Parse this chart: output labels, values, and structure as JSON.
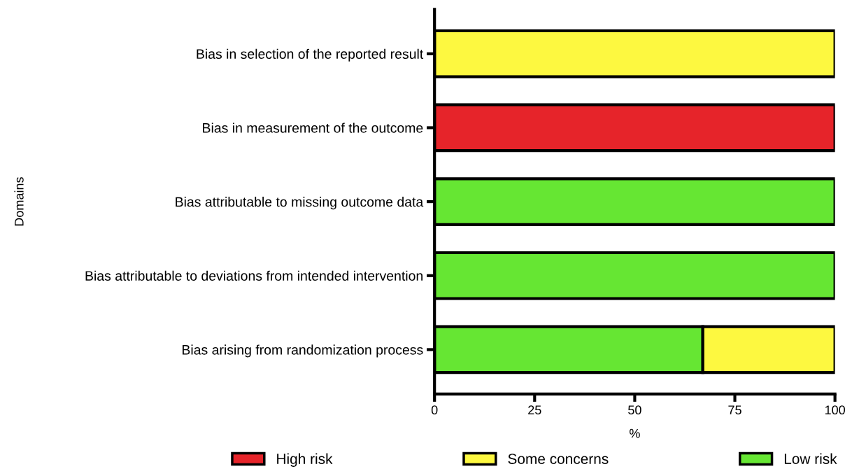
{
  "chart_data": {
    "type": "bar",
    "orientation": "horizontal",
    "stacked": true,
    "xlabel": "%",
    "ylabel": "Domains",
    "categories": [
      "Bias in selection of the reported result",
      "Bias in measurement of the outcome",
      "Bias attributable to missing outcome data",
      "Bias attributable to deviations from intended intervention",
      "Bias arising from randomization process"
    ],
    "series": [
      {
        "name": "Low risk",
        "color": "#66e633",
        "values": [
          0,
          0,
          100,
          100,
          67
        ]
      },
      {
        "name": "Some concerns",
        "color": "#fdf840",
        "values": [
          100,
          0,
          0,
          0,
          33
        ]
      },
      {
        "name": "High risk",
        "color": "#e6242a",
        "values": [
          0,
          100,
          0,
          0,
          0
        ]
      }
    ],
    "xlim": [
      0,
      100
    ],
    "xticks": [
      0,
      25,
      50,
      75,
      100
    ],
    "grid": false,
    "legend": "bottom"
  }
}
